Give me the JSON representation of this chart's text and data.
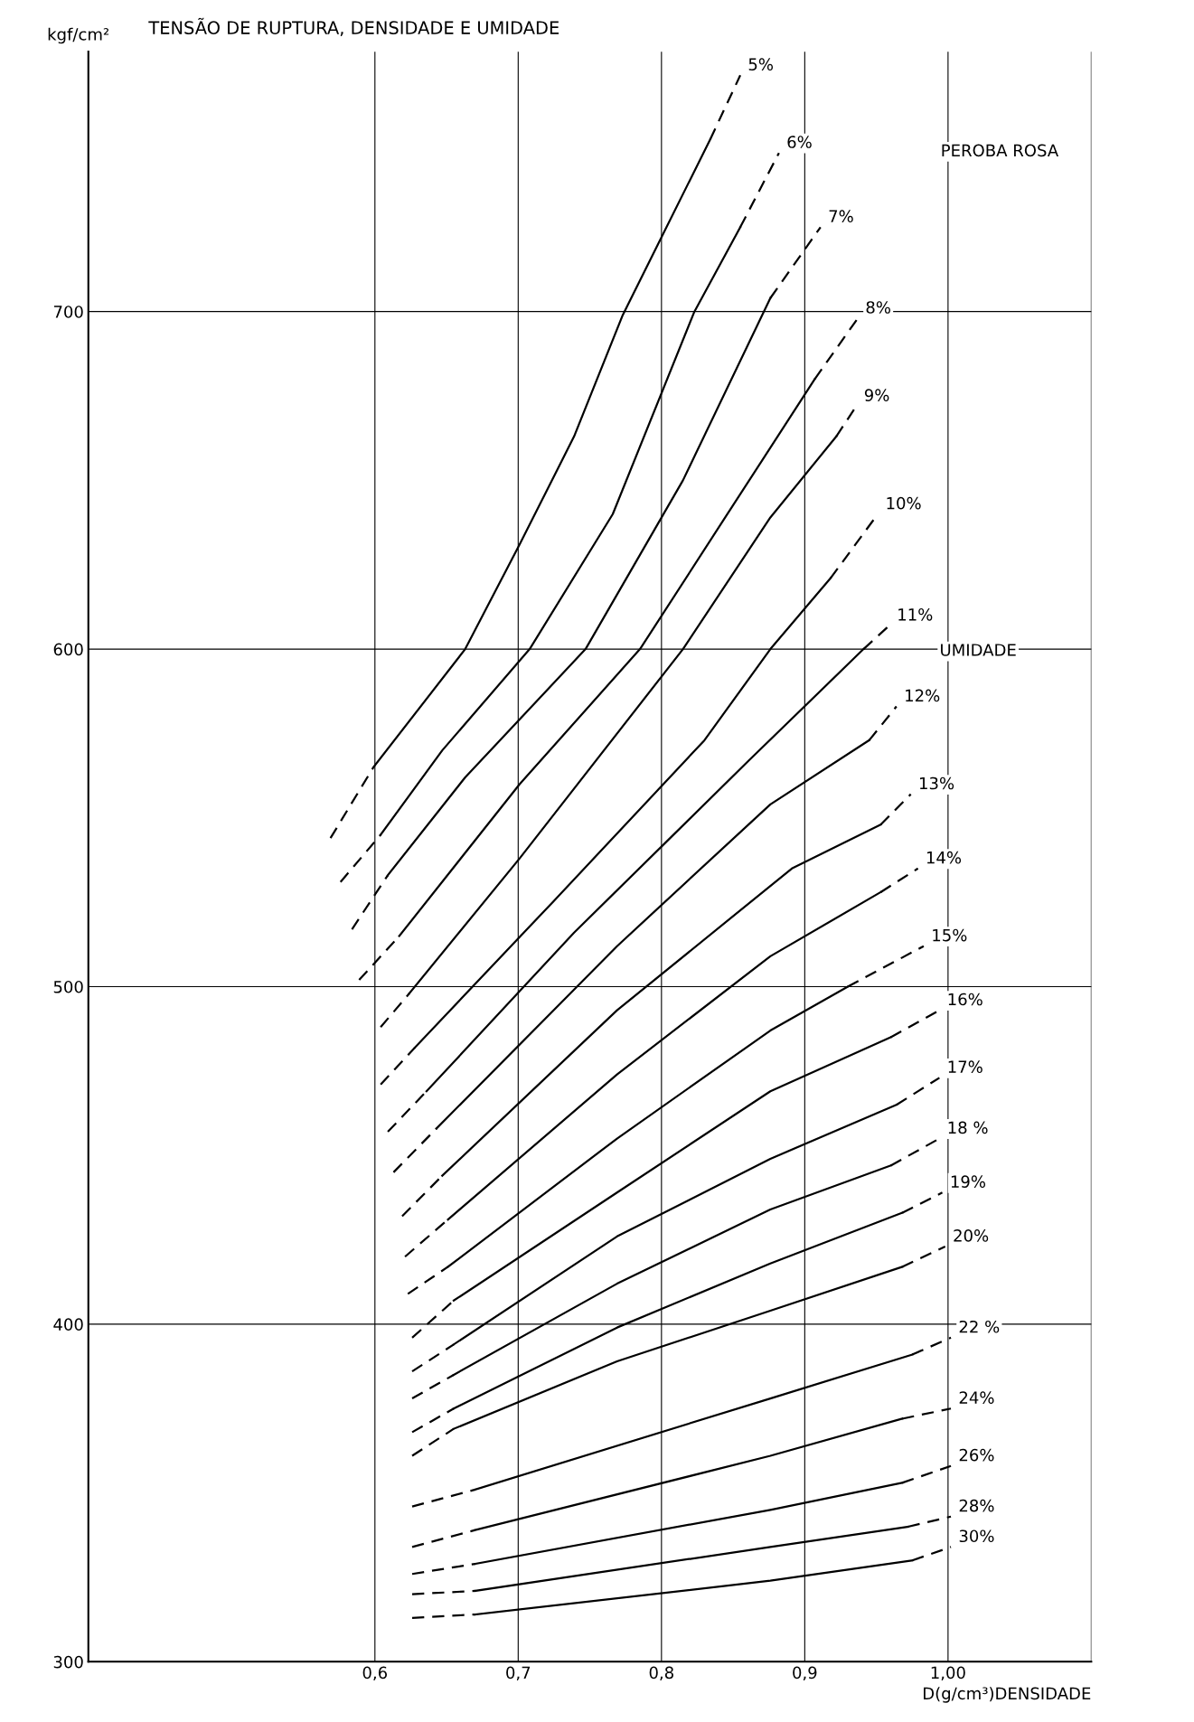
{
  "chart_data": {
    "type": "line",
    "title": "TENSÃO DE RUPTURA, DENSIDADE E UMIDADE",
    "xlabel": "D(g/cm³)DENSIDADE",
    "ylabel": "kgf/cm²",
    "annotations": [
      "PEROBA ROSA",
      "UMIDADE"
    ],
    "xlim": [
      0.4,
      1.1
    ],
    "ylim": [
      300,
      777
    ],
    "xticks": [
      {
        "value": 0.6,
        "label": "0,6"
      },
      {
        "value": 0.7,
        "label": "0,7"
      },
      {
        "value": 0.8,
        "label": "0,8"
      },
      {
        "value": 0.9,
        "label": "0,9"
      },
      {
        "value": 1.0,
        "label": "1,00"
      },
      {
        "value": 1.1,
        "label": null
      }
    ],
    "yticks": [
      300,
      400,
      500,
      600,
      700
    ],
    "grid": true,
    "series": [
      {
        "color": "#000000",
        "line_style": "dashed",
        "x": [
          0.569,
          0.599
        ],
        "values": [
          544,
          565
        ]
      },
      {
        "color": "#000000",
        "line_style": "solid",
        "x": [
          0.599,
          0.663,
          0.701,
          0.739,
          0.773,
          0.834
        ],
        "values": [
          565,
          600,
          631,
          663,
          699,
          751
        ]
      },
      {
        "name": "5%",
        "color": "#000000",
        "line_style": "dashed",
        "x": [
          0.834,
          0.855
        ],
        "values": [
          751,
          770
        ]
      },
      {
        "color": "#000000",
        "line_style": "dashed",
        "x": [
          0.576,
          0.604
        ],
        "values": [
          531,
          545
        ]
      },
      {
        "color": "#000000",
        "line_style": "solid",
        "x": [
          0.604,
          0.647,
          0.708,
          0.766,
          0.823,
          0.855
        ],
        "values": [
          545,
          570,
          600,
          640,
          700,
          725
        ]
      },
      {
        "name": "6%",
        "color": "#000000",
        "line_style": "dashed",
        "x": [
          0.855,
          0.882
        ],
        "values": [
          725,
          747
        ]
      },
      {
        "color": "#000000",
        "line_style": "dashed",
        "x": [
          0.584,
          0.609
        ],
        "values": [
          517,
          533
        ]
      },
      {
        "color": "#000000",
        "line_style": "solid",
        "x": [
          0.609,
          0.663,
          0.747,
          0.815,
          0.876
        ],
        "values": [
          533,
          562,
          600,
          650,
          704
        ]
      },
      {
        "name": "7%",
        "color": "#000000",
        "line_style": "dashed",
        "x": [
          0.876,
          0.911
        ],
        "values": [
          704,
          725
        ]
      },
      {
        "color": "#000000",
        "line_style": "dashed",
        "x": [
          0.589,
          0.617
        ],
        "values": [
          502,
          515
        ]
      },
      {
        "color": "#000000",
        "line_style": "solid",
        "x": [
          0.617,
          0.701,
          0.785,
          0.846,
          0.907
        ],
        "values": [
          515,
          560,
          600,
          640,
          680
        ]
      },
      {
        "name": "8%",
        "color": "#000000",
        "line_style": "dashed",
        "x": [
          0.907,
          0.937
        ],
        "values": [
          680,
          698
        ]
      },
      {
        "color": "#000000",
        "line_style": "dashed",
        "x": [
          0.604,
          0.624
        ],
        "values": [
          488,
          498
        ]
      },
      {
        "color": "#000000",
        "line_style": "solid",
        "x": [
          0.624,
          0.701,
          0.815,
          0.876,
          0.922
        ],
        "values": [
          498,
          538,
          600,
          639,
          663
        ]
      },
      {
        "name": "9%",
        "color": "#000000",
        "line_style": "dashed",
        "x": [
          0.922,
          0.936
        ],
        "values": [
          663,
          672
        ]
      },
      {
        "color": "#000000",
        "line_style": "dashed",
        "x": [
          0.604,
          0.628
        ],
        "values": [
          471,
          482
        ]
      },
      {
        "color": "#000000",
        "line_style": "solid",
        "x": [
          0.628,
          0.724,
          0.83,
          0.876,
          0.918
        ],
        "values": [
          482,
          525,
          573,
          600,
          621
        ]
      },
      {
        "name": "10%",
        "color": "#000000",
        "line_style": "dashed",
        "x": [
          0.918,
          0.951
        ],
        "values": [
          621,
          640
        ]
      },
      {
        "color": "#000000",
        "line_style": "dashed",
        "x": [
          0.609,
          0.636
        ],
        "values": [
          457,
          469
        ]
      },
      {
        "color": "#000000",
        "line_style": "solid",
        "x": [
          0.636,
          0.739,
          0.861,
          0.941
        ],
        "values": [
          469,
          516,
          567,
          600
        ]
      },
      {
        "name": "11%",
        "color": "#000000",
        "line_style": "dashed",
        "x": [
          0.941,
          0.959
        ],
        "values": [
          600,
          607
        ]
      },
      {
        "color": "#000000",
        "line_style": "dashed",
        "x": [
          0.613,
          0.643
        ],
        "values": [
          445,
          458
        ]
      },
      {
        "color": "#000000",
        "line_style": "solid",
        "x": [
          0.643,
          0.769,
          0.876,
          0.945
        ],
        "values": [
          458,
          512,
          554,
          573
        ]
      },
      {
        "name": "12%",
        "color": "#000000",
        "line_style": "dashed",
        "x": [
          0.945,
          0.964
        ],
        "values": [
          573,
          583
        ]
      },
      {
        "color": "#000000",
        "line_style": "dashed",
        "x": [
          0.619,
          0.647
        ],
        "values": [
          432,
          444
        ]
      },
      {
        "color": "#000000",
        "line_style": "solid",
        "x": [
          0.647,
          0.769,
          0.891,
          0.953
        ],
        "values": [
          444,
          493,
          535,
          548
        ]
      },
      {
        "name": "13%",
        "color": "#000000",
        "line_style": "dashed",
        "x": [
          0.953,
          0.974
        ],
        "values": [
          548,
          557
        ]
      },
      {
        "color": "#000000",
        "line_style": "dashed",
        "x": [
          0.621,
          0.651
        ],
        "values": [
          420,
          431
        ]
      },
      {
        "color": "#000000",
        "line_style": "solid",
        "x": [
          0.651,
          0.769,
          0.876,
          0.953
        ],
        "values": [
          431,
          474,
          509,
          528
        ]
      },
      {
        "name": "14%",
        "color": "#000000",
        "line_style": "dashed",
        "x": [
          0.953,
          0.979
        ],
        "values": [
          528,
          535
        ]
      },
      {
        "color": "#000000",
        "line_style": "dashed",
        "x": [
          0.623,
          0.651
        ],
        "values": [
          409,
          417
        ]
      },
      {
        "color": "#000000",
        "line_style": "solid",
        "x": [
          0.651,
          0.769,
          0.876,
          0.93
        ],
        "values": [
          417,
          455,
          487,
          500
        ]
      },
      {
        "name": "15%",
        "color": "#000000",
        "line_style": "dashed",
        "x": [
          0.93,
          0.983
        ],
        "values": [
          500,
          512
        ]
      },
      {
        "color": "#000000",
        "line_style": "dashed",
        "x": [
          0.626,
          0.655
        ],
        "values": [
          396,
          407
        ]
      },
      {
        "color": "#000000",
        "line_style": "solid",
        "x": [
          0.655,
          0.769,
          0.876,
          0.96
        ],
        "values": [
          407,
          439,
          469,
          485
        ]
      },
      {
        "name": "16%",
        "color": "#000000",
        "line_style": "dashed",
        "x": [
          0.96,
          0.994
        ],
        "values": [
          485,
          493
        ]
      },
      {
        "color": "#000000",
        "line_style": "dashed",
        "x": [
          0.626,
          0.655
        ],
        "values": [
          386,
          394
        ]
      },
      {
        "color": "#000000",
        "line_style": "solid",
        "x": [
          0.655,
          0.769,
          0.876,
          0.964
        ],
        "values": [
          394,
          426,
          449,
          465
        ]
      },
      {
        "name": "17%",
        "color": "#000000",
        "line_style": "dashed",
        "x": [
          0.964,
          0.994
        ],
        "values": [
          465,
          473
        ]
      },
      {
        "color": "#000000",
        "line_style": "dashed",
        "x": [
          0.626,
          0.655
        ],
        "values": [
          378,
          385
        ]
      },
      {
        "color": "#000000",
        "line_style": "solid",
        "x": [
          0.655,
          0.769,
          0.876,
          0.96
        ],
        "values": [
          385,
          412,
          434,
          447
        ]
      },
      {
        "name": "18 %",
        "color": "#000000",
        "line_style": "dashed",
        "x": [
          0.96,
          0.994
        ],
        "values": [
          447,
          455
        ]
      },
      {
        "color": "#000000",
        "line_style": "dashed",
        "x": [
          0.626,
          0.655
        ],
        "values": [
          368,
          375
        ]
      },
      {
        "color": "#000000",
        "line_style": "solid",
        "x": [
          0.655,
          0.769,
          0.876,
          0.968
        ],
        "values": [
          375,
          399,
          418,
          433
        ]
      },
      {
        "name": "19%",
        "color": "#000000",
        "line_style": "dashed",
        "x": [
          0.968,
          0.996
        ],
        "values": [
          433,
          439
        ]
      },
      {
        "color": "#000000",
        "line_style": "dashed",
        "x": [
          0.626,
          0.655
        ],
        "values": [
          361,
          369
        ]
      },
      {
        "color": "#000000",
        "line_style": "solid",
        "x": [
          0.655,
          0.769,
          0.876,
          0.968
        ],
        "values": [
          369,
          389,
          404,
          417
        ]
      },
      {
        "name": "20%",
        "color": "#000000",
        "line_style": "dashed",
        "x": [
          0.968,
          0.998
        ],
        "values": [
          417,
          423
        ]
      },
      {
        "color": "#000000",
        "line_style": "dashed",
        "x": [
          0.626,
          0.67
        ],
        "values": [
          346,
          351
        ]
      },
      {
        "color": "#000000",
        "line_style": "solid",
        "x": [
          0.67,
          0.876,
          0.975
        ],
        "values": [
          351,
          378,
          391
        ]
      },
      {
        "name": "22 %",
        "color": "#000000",
        "line_style": "dashed",
        "x": [
          0.975,
          1.002
        ],
        "values": [
          391,
          396
        ]
      },
      {
        "color": "#000000",
        "line_style": "dashed",
        "x": [
          0.626,
          0.67
        ],
        "values": [
          334,
          339
        ]
      },
      {
        "color": "#000000",
        "line_style": "solid",
        "x": [
          0.67,
          0.876,
          0.968
        ],
        "values": [
          339,
          361,
          372
        ]
      },
      {
        "name": "24%",
        "color": "#000000",
        "line_style": "dashed",
        "x": [
          0.968,
          1.002
        ],
        "values": [
          372,
          375
        ]
      },
      {
        "color": "#000000",
        "line_style": "dashed",
        "x": [
          0.626,
          0.67
        ],
        "values": [
          326,
          329
        ]
      },
      {
        "color": "#000000",
        "line_style": "solid",
        "x": [
          0.67,
          0.876,
          0.968
        ],
        "values": [
          329,
          345,
          353
        ]
      },
      {
        "name": "26%",
        "color": "#000000",
        "line_style": "dashed",
        "x": [
          0.968,
          1.002
        ],
        "values": [
          353,
          358
        ]
      },
      {
        "color": "#000000",
        "line_style": "dashed",
        "x": [
          0.626,
          0.67
        ],
        "values": [
          320,
          321
        ]
      },
      {
        "color": "#000000",
        "line_style": "solid",
        "x": [
          0.67,
          0.876,
          0.972
        ],
        "values": [
          321,
          334,
          340
        ]
      },
      {
        "name": "28%",
        "color": "#000000",
        "line_style": "dashed",
        "x": [
          0.972,
          1.002
        ],
        "values": [
          340,
          343
        ]
      },
      {
        "color": "#000000",
        "line_style": "dashed",
        "x": [
          0.626,
          0.67
        ],
        "values": [
          313,
          314
        ]
      },
      {
        "color": "#000000",
        "line_style": "solid",
        "x": [
          0.67,
          0.876,
          0.975
        ],
        "values": [
          314,
          324,
          330
        ]
      },
      {
        "name": "30%",
        "color": "#000000",
        "line_style": "dashed",
        "x": [
          0.975,
          1.002
        ],
        "values": [
          330,
          334
        ]
      }
    ]
  }
}
